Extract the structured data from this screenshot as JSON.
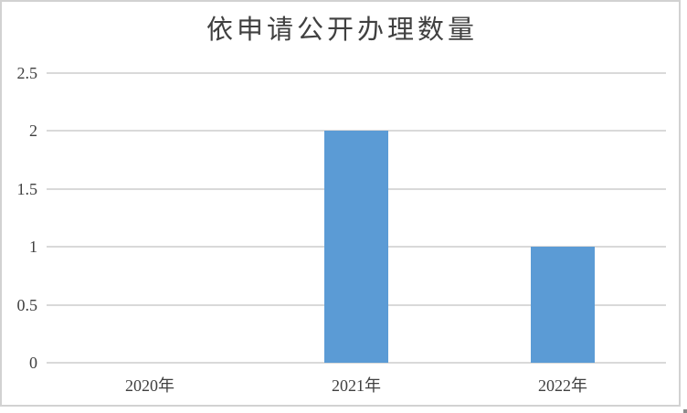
{
  "chart_data": {
    "type": "bar",
    "title": "依申请公开办理数量",
    "categories": [
      "2020年",
      "2021年",
      "2022年"
    ],
    "values": [
      0,
      2,
      1
    ],
    "yticks": [
      0,
      0.5,
      1,
      1.5,
      2,
      2.5
    ],
    "ytick_labels": [
      "0",
      "0.5",
      "1",
      "1.5",
      "2",
      "2.5"
    ],
    "ylim": [
      0,
      2.5
    ],
    "xlabel": "",
    "ylabel": "",
    "grid": true,
    "legend": false,
    "bar_color": "#5B9BD5",
    "gridline_color": "#D9D9D9",
    "text_color": "#404040",
    "border_color": "#D2D2D2"
  }
}
